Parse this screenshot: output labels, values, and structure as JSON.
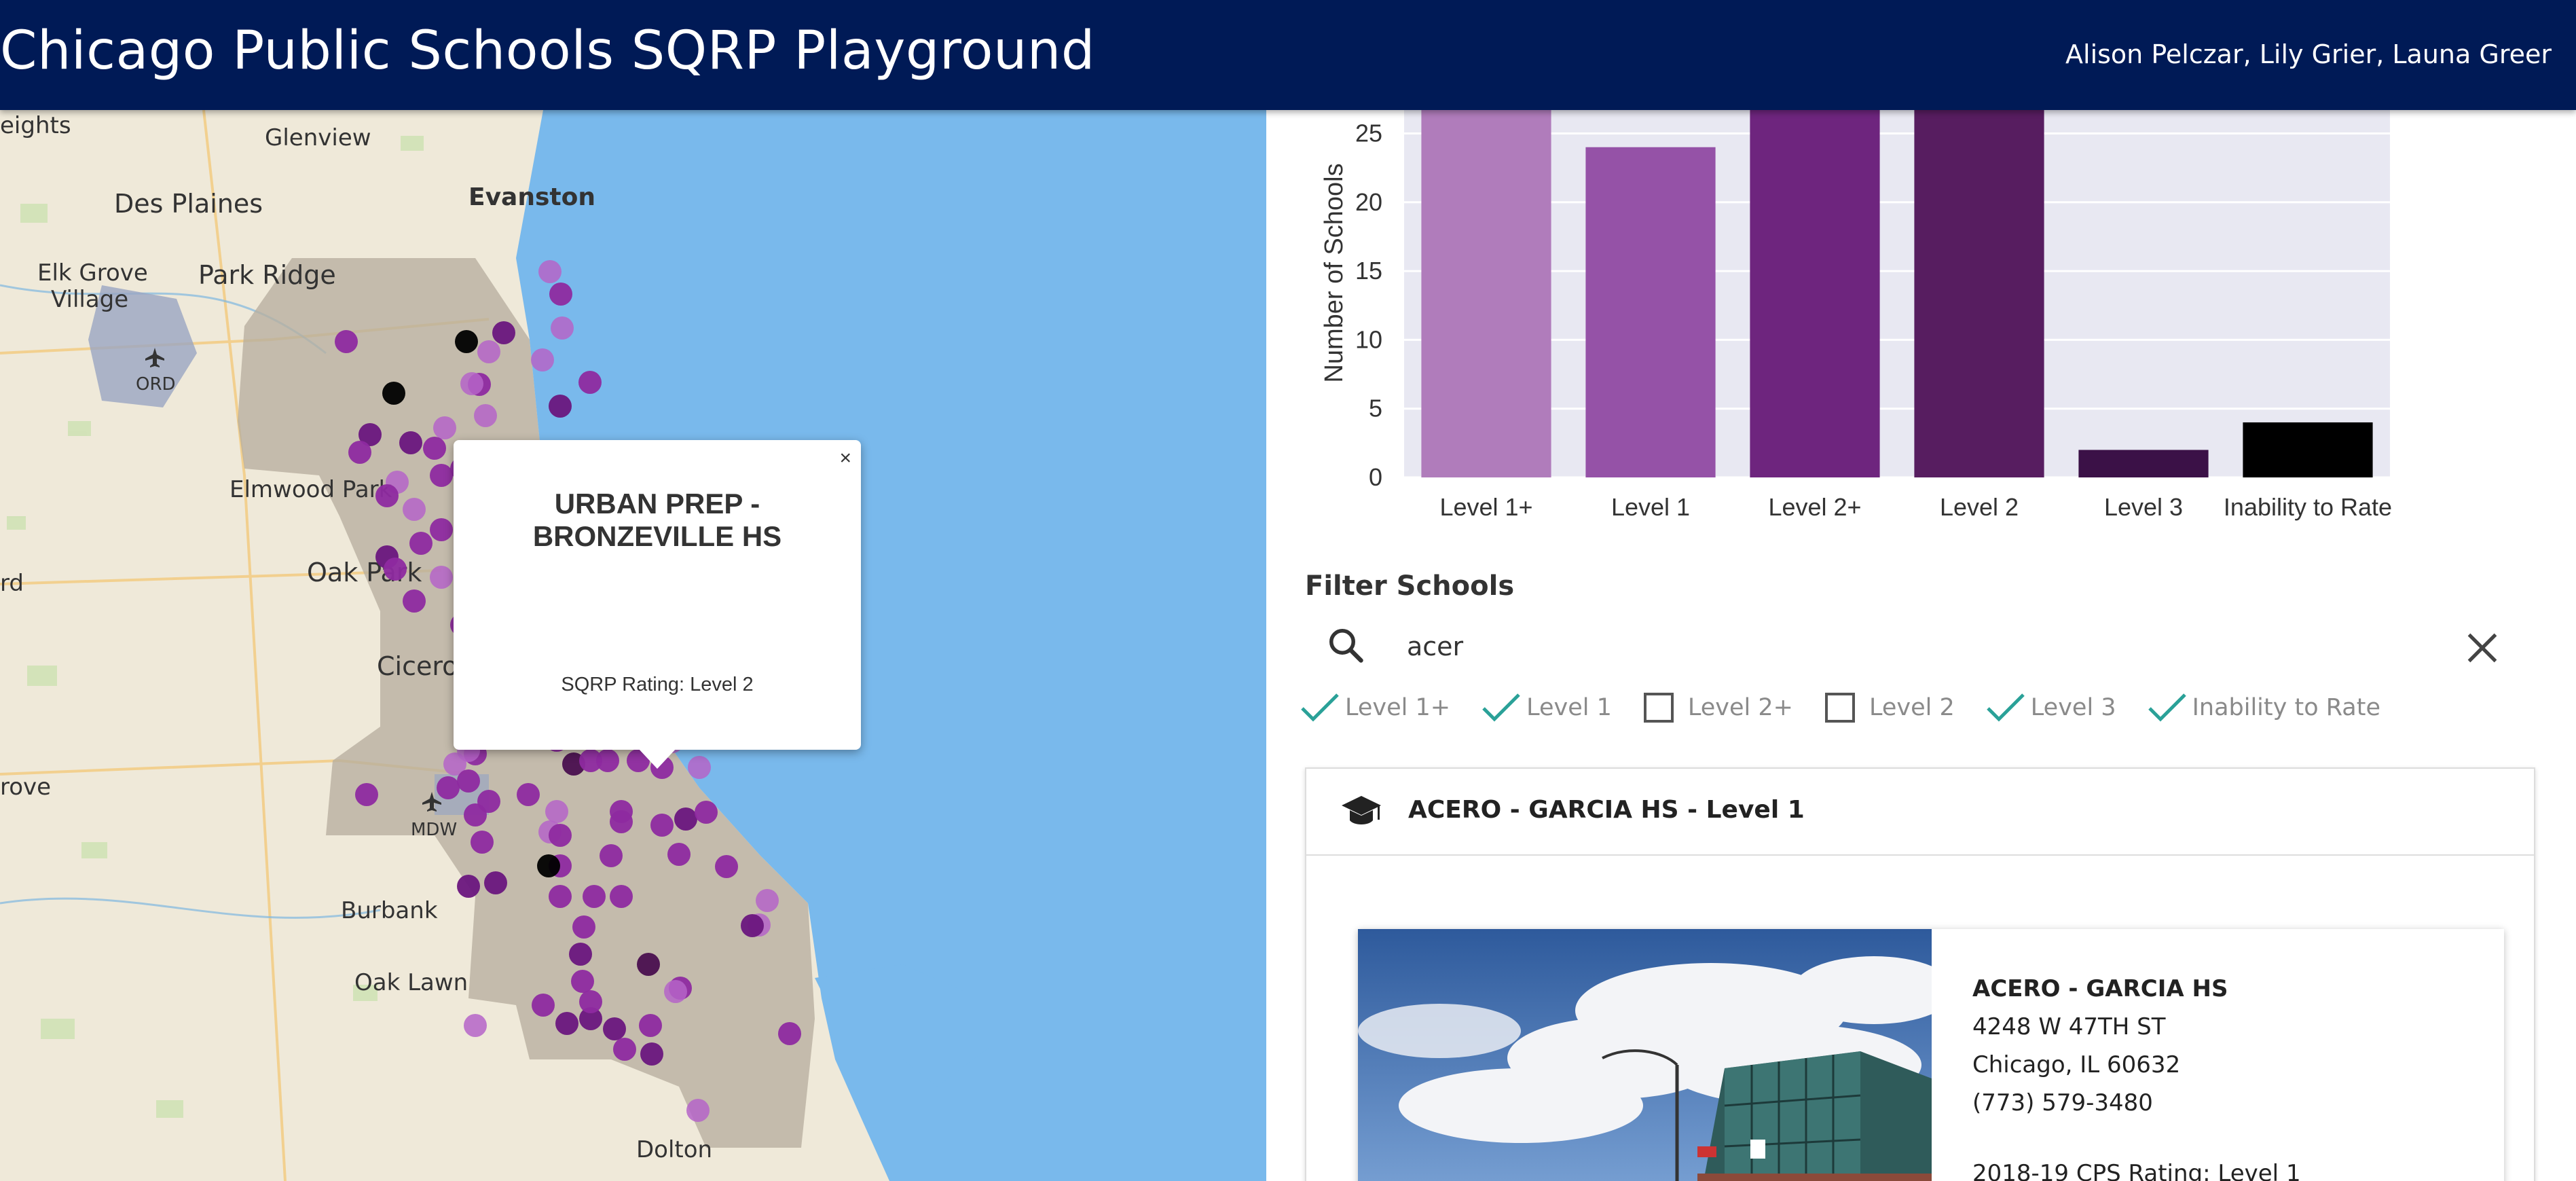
{
  "header": {
    "title": "Chicago Public Schools SQRP Playground",
    "authors": "Alison Pelczar, Lily Grier, Launa Greer"
  },
  "map": {
    "places": [
      "eights",
      "Glenview",
      "Des Plaines",
      "Evanston",
      "Elk Grove",
      "Village",
      "Park Ridge",
      "ORD",
      "Elmwood Park",
      "Oak Park",
      "rd",
      "Cicero",
      "rove",
      "MDW",
      "Burbank",
      "Oak Lawn",
      "Dolton"
    ],
    "popup": {
      "close": "×",
      "title": "URBAN PREP - BRONZEVILLE HS",
      "rating": "SQRP Rating: Level 2"
    },
    "colors": {
      "water": "#79b9ec",
      "land": "#efe9d9",
      "city": "#b7ae9f"
    }
  },
  "chart_data": {
    "type": "bar",
    "ylabel": "Number of Schools",
    "categories": [
      "Level 1+",
      "Level 1",
      "Level 2+",
      "Level 2",
      "Level 3",
      "Inability to Rate"
    ],
    "values": [
      27,
      24,
      27,
      27,
      2,
      4
    ],
    "colors": [
      "#b07cbb",
      "#9552a7",
      "#6e257e",
      "#571d60",
      "#3b1147",
      "#000000"
    ],
    "yticks": [
      0,
      5,
      10,
      15,
      20,
      25
    ],
    "visible_ylim": [
      0,
      26.7
    ],
    "grid": true
  },
  "filter": {
    "title": "Filter Schools",
    "search_value": "acer",
    "levels": [
      {
        "label": "Level 1+",
        "checked": true
      },
      {
        "label": "Level 1",
        "checked": true
      },
      {
        "label": "Level 2+",
        "checked": false
      },
      {
        "label": "Level 2",
        "checked": false
      },
      {
        "label": "Level 3",
        "checked": true
      },
      {
        "label": "Inability to Rate",
        "checked": true
      }
    ]
  },
  "result": {
    "title": "ACERO - GARCIA HS - Level 1",
    "school": {
      "name": "ACERO - GARCIA HS",
      "address": "4248 W 47TH ST",
      "city": "Chicago, IL 60632",
      "phone": "(773) 579-3480",
      "rating": "2018-19 CPS Rating: Level 1"
    }
  },
  "icons": {
    "search": "search-icon",
    "clear": "close-icon",
    "check": "check-icon",
    "unchecked": "checkbox-empty-icon",
    "cap": "graduation-cap-icon",
    "airport": "airplane-icon"
  }
}
